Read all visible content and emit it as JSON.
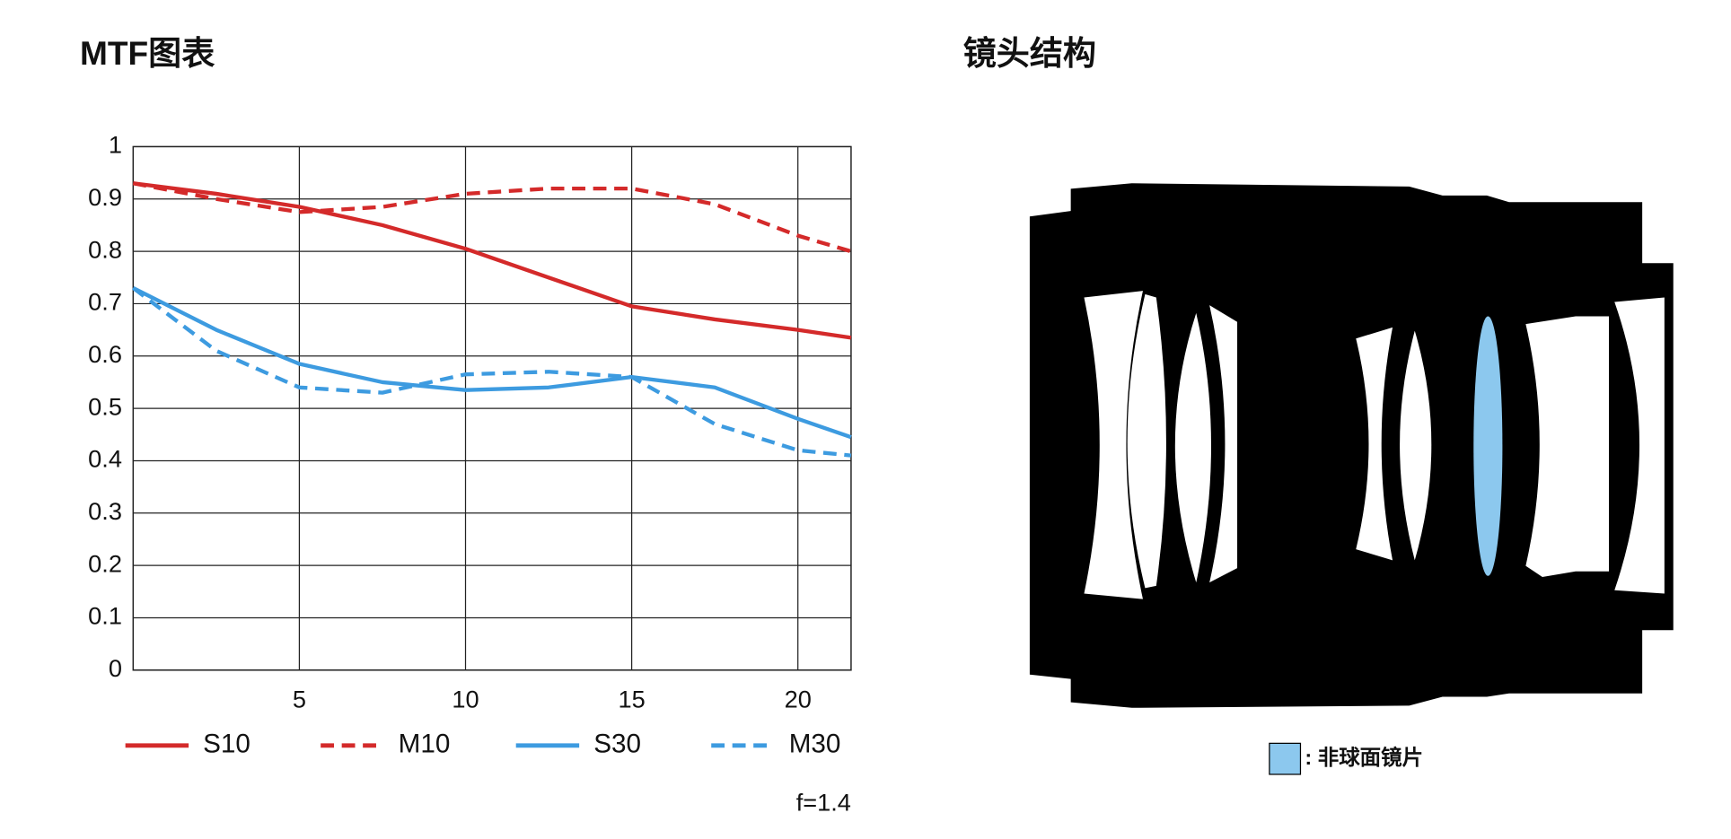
{
  "chart_data": {
    "type": "line",
    "title": "MTF图表",
    "x": [
      0,
      2.5,
      5,
      7.5,
      10,
      12.5,
      15,
      17.5,
      20,
      21.6
    ],
    "series": [
      {
        "name": "S10",
        "color": "#d42a2a",
        "dashed": false,
        "values": [
          0.93,
          0.91,
          0.885,
          0.85,
          0.805,
          0.75,
          0.695,
          0.67,
          0.65,
          0.635
        ]
      },
      {
        "name": "M10",
        "color": "#d42a2a",
        "dashed": true,
        "values": [
          0.93,
          0.9,
          0.875,
          0.885,
          0.91,
          0.92,
          0.92,
          0.89,
          0.83,
          0.8
        ]
      },
      {
        "name": "S30",
        "color": "#3d9be0",
        "dashed": false,
        "values": [
          0.73,
          0.65,
          0.585,
          0.55,
          0.535,
          0.54,
          0.56,
          0.54,
          0.48,
          0.445
        ]
      },
      {
        "name": "M30",
        "color": "#3d9be0",
        "dashed": true,
        "values": [
          0.73,
          0.61,
          0.54,
          0.53,
          0.565,
          0.57,
          0.56,
          0.47,
          0.42,
          0.41
        ]
      }
    ],
    "xlim": [
      0,
      21.6
    ],
    "ylim": [
      0,
      1
    ],
    "xticks": [
      5,
      10,
      15,
      20
    ],
    "yticks": [
      0,
      0.1,
      0.2,
      0.3,
      0.4,
      0.5,
      0.6,
      0.7,
      0.8,
      0.9,
      1
    ],
    "grid": true,
    "legend": "bottom",
    "note": "f=1.4"
  },
  "diagram": {
    "title": "镜头结构",
    "legend_label": ": 非球面镜片",
    "aspherical_color": "#8cc8ee"
  }
}
